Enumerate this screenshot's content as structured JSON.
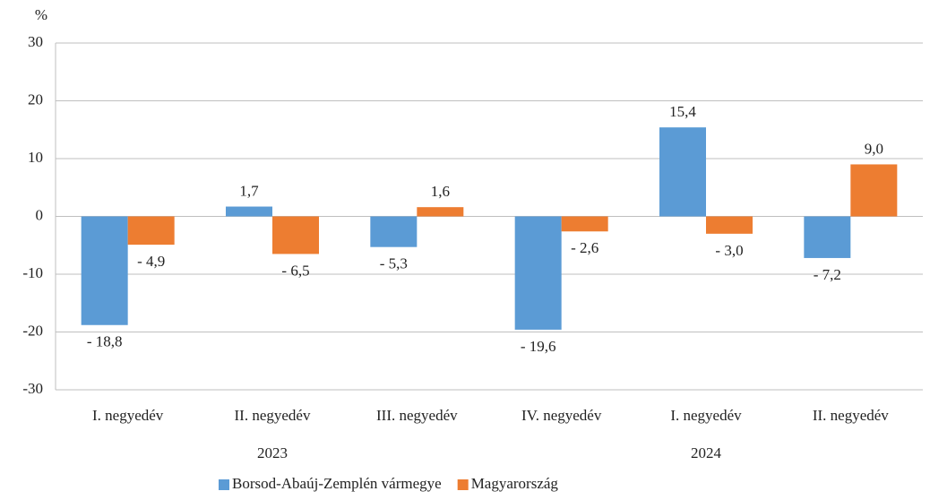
{
  "chart_data": {
    "type": "bar",
    "y_unit_label": "%",
    "categories": [
      "I. negyedév",
      "II. negyedév",
      "III. negyedév",
      "IV. negyedév",
      "I. negyedév",
      "II. negyedév"
    ],
    "x_groups": [
      {
        "name": "2023",
        "span": 3
      },
      {
        "name": "2024",
        "span": 3
      }
    ],
    "series": [
      {
        "name": "Borsod-Abaúj-Zemplén vármegye",
        "color": "#5b9bd5",
        "values": [
          -18.8,
          1.7,
          -5.3,
          -19.6,
          15.4,
          -7.2
        ],
        "value_labels": [
          "- 18,8",
          "1,7",
          "- 5,3",
          "- 19,6",
          "15,4",
          "- 7,2"
        ]
      },
      {
        "name": "Magyarország",
        "color": "#ed7d31",
        "values": [
          -4.9,
          -6.5,
          1.6,
          -2.6,
          -3.0,
          9.0
        ],
        "value_labels": [
          "- 4,9",
          "- 6,5",
          "1,6",
          "- 2,6",
          "- 3,0",
          "9,0"
        ]
      }
    ],
    "ylim": [
      -30,
      30
    ],
    "yticks": [
      -30,
      -20,
      -10,
      0,
      10,
      20,
      30
    ],
    "grid": true,
    "legend": "bottom"
  }
}
